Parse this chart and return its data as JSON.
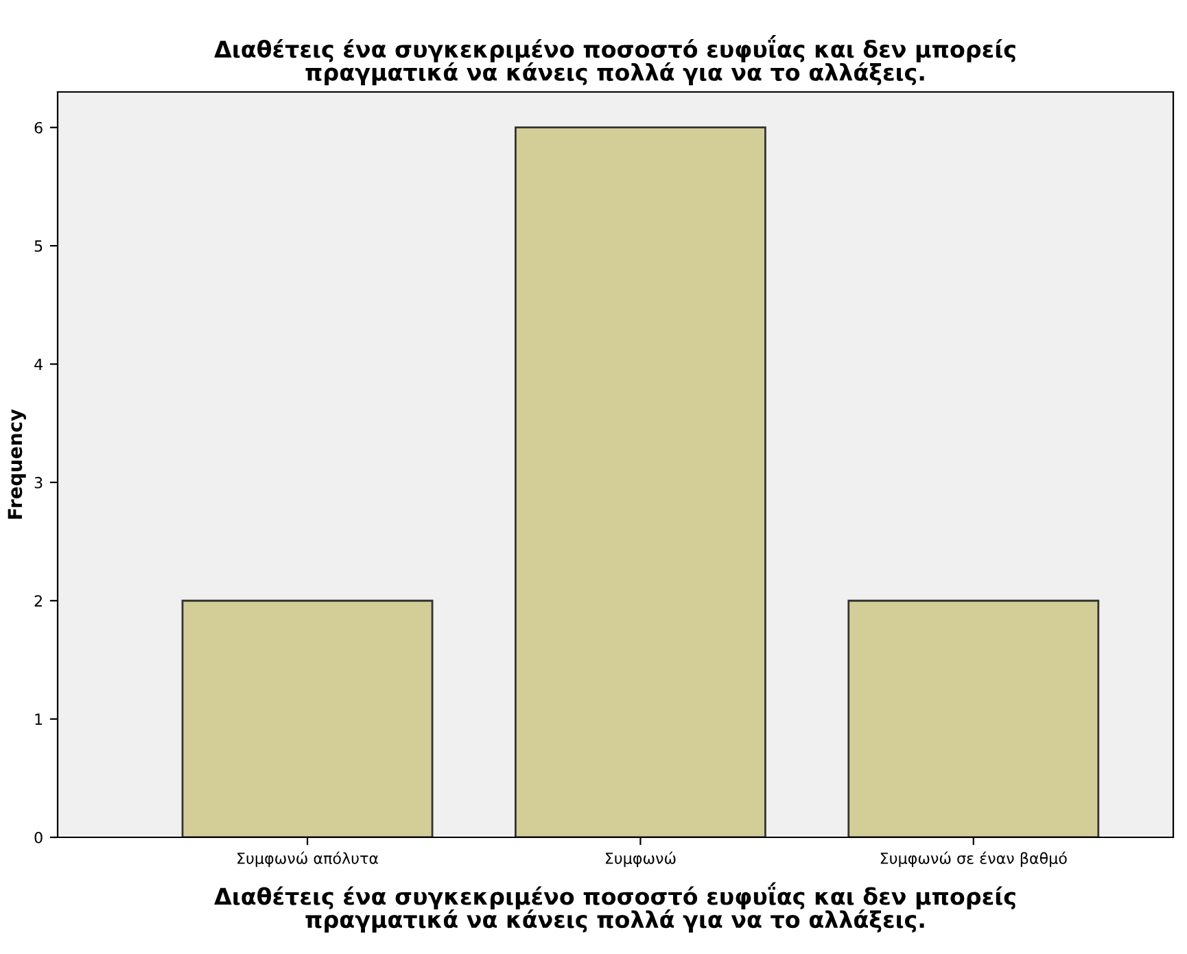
{
  "chart_data": {
    "type": "bar",
    "title": "Διαθέτεις ένα συγκεκριμένο ποσοστό ευφυΐας και δεν μπορείς\nπραγματικά να κάνεις πολλά για να το αλλάξεις.",
    "xlabel": "Διαθέτεις ένα συγκεκριμένο ποσοστό ευφυΐας και δεν μπορείς\nπραγματικά να κάνεις πολλά για να το αλλάξεις.",
    "ylabel": "Frequency",
    "categories": [
      "Συμφωνώ απόλυτα",
      "Συμφωνώ",
      "Συμφωνώ σε έναν βαθμό"
    ],
    "values": [
      2,
      6,
      2
    ],
    "color": "#d3ce97",
    "ylim": [
      0,
      6.3
    ],
    "yticks": [
      0,
      1,
      2,
      3,
      4,
      5,
      6
    ],
    "grid": false
  }
}
